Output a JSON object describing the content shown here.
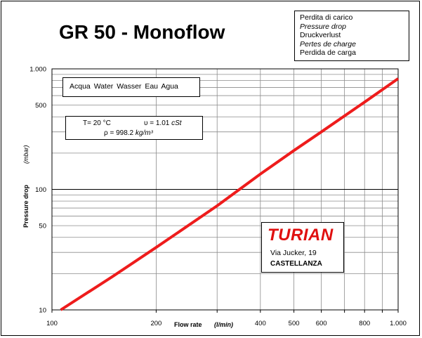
{
  "chart_data": {
    "type": "line",
    "title": "GR 50 - Monoflow",
    "xlabel": "Flow rate",
    "xlabel_unit": "(l/min)",
    "ylabel": "Pressure drop",
    "ylabel_unit": "(mbar)",
    "x_scale": "log",
    "y_scale": "log",
    "xlim": [
      100,
      1000
    ],
    "ylim": [
      10,
      1000
    ],
    "x_tick_labels": [
      {
        "value": 100,
        "label": "100"
      },
      {
        "value": 200,
        "label": "200"
      },
      {
        "value": 400,
        "label": "400"
      },
      {
        "value": 500,
        "label": "500"
      },
      {
        "value": 600,
        "label": "600"
      },
      {
        "value": 800,
        "label": "800"
      },
      {
        "value": 1000,
        "label": "1.000"
      }
    ],
    "y_tick_labels": [
      {
        "value": 10,
        "label": "10"
      },
      {
        "value": 50,
        "label": "50"
      },
      {
        "value": 100,
        "label": "100"
      },
      {
        "value": 500,
        "label": "500"
      },
      {
        "value": 1000,
        "label": "1.000"
      }
    ],
    "grid": true,
    "line_color": "#ee1c1c",
    "series": [
      {
        "x": [
          106,
          150,
          200,
          300,
          400,
          500,
          600,
          800,
          1000
        ],
        "y": [
          10,
          19,
          33,
          73,
          134,
          210,
          300,
          530,
          830
        ]
      }
    ]
  },
  "legend_box": {
    "lines": [
      "Perdita di carico",
      "Pressure drop",
      "Druckverlust",
      "Pertes de charge",
      "Perdida de carga"
    ]
  },
  "fluids_box": {
    "text": "Acqua  Water  Wasser  Eau  Agua"
  },
  "props_box": {
    "temperature": "T= 20 °C",
    "viscosity": "υ = 1.01",
    "viscosity_unit": "cSt",
    "density": "ρ = 998.2",
    "density_unit": "kg/m³"
  },
  "brand_box": {
    "name": "TURIAN",
    "street": "Via Jucker, 19",
    "city": "CASTELLANZA"
  }
}
